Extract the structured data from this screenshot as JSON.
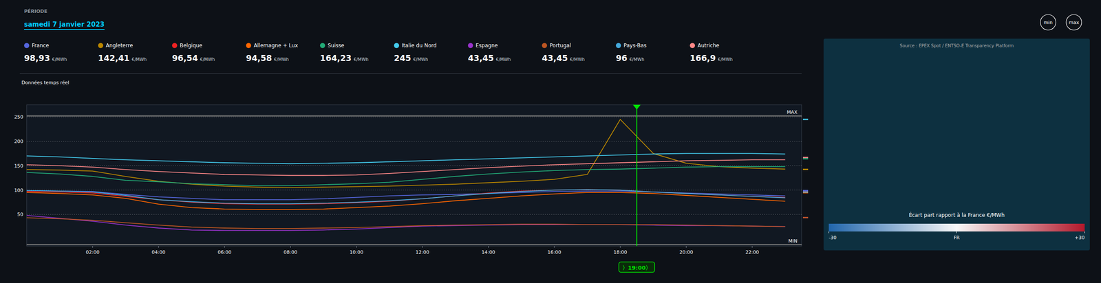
{
  "chart_data": [
    {
      "type": "line",
      "title": "samedi 7 janvier 2023",
      "subtitle": "PÉRIODE",
      "annotations": [
        "Données temps réel"
      ],
      "buttons": [
        "min",
        "max"
      ],
      "legend": "top",
      "grid": true,
      "price_unit": "€/MWh",
      "x": [
        0,
        1,
        2,
        3,
        4,
        5,
        6,
        7,
        8,
        9,
        10,
        11,
        12,
        13,
        14,
        15,
        16,
        17,
        18,
        19,
        20,
        21,
        22,
        23
      ],
      "xlim": [
        0,
        23.5
      ],
      "xticks": [
        {
          "value": 2,
          "label": "02:00"
        },
        {
          "value": 4,
          "label": "04:00"
        },
        {
          "value": 6,
          "label": "06:00"
        },
        {
          "value": 8,
          "label": "08:00"
        },
        {
          "value": 10,
          "label": "10:00"
        },
        {
          "value": 12,
          "label": "12:00"
        },
        {
          "value": 14,
          "label": "14:00"
        },
        {
          "value": 16,
          "label": "16:00"
        },
        {
          "value": 18,
          "label": "18:00"
        },
        {
          "value": 20,
          "label": "20:00"
        },
        {
          "value": 22,
          "label": "22:00"
        }
      ],
      "ylim": [
        -15,
        275
      ],
      "yticks": [
        50,
        100,
        150,
        200,
        250
      ],
      "reference_lines": [
        {
          "value": 252,
          "label": "MAX"
        },
        {
          "value": -12,
          "label": "MIN"
        }
      ],
      "cursor": {
        "value": 18.5,
        "label": "〉19:00〉"
      },
      "series": [
        {
          "name": "France",
          "color": "#5566dd",
          "price": {
            "value": 98.93,
            "label": "98,93"
          },
          "values": [
            99,
            98,
            97,
            91,
            86,
            83,
            80,
            80,
            80,
            82,
            85,
            88,
            90,
            91,
            93,
            95,
            97,
            98,
            98,
            96,
            94,
            92,
            90,
            88
          ]
        },
        {
          "name": "Angleterre",
          "color": "#bb8800",
          "price": {
            "value": 142.41,
            "label": "142,41"
          },
          "values": [
            142,
            141,
            139,
            128,
            118,
            112,
            108,
            106,
            105,
            106,
            107,
            108,
            110,
            112,
            115,
            118,
            122,
            132,
            245,
            175,
            155,
            148,
            145,
            143
          ]
        },
        {
          "name": "Belgique",
          "color": "#ee2222",
          "price": {
            "value": 96.54,
            "label": "96,54"
          },
          "values": [
            97,
            96,
            94,
            87,
            80,
            75,
            72,
            71,
            71,
            72,
            74,
            77,
            82,
            88,
            94,
            98,
            100,
            101,
            100,
            96,
            93,
            90,
            87,
            85
          ]
        },
        {
          "name": "Allemagne + Lux",
          "color": "#ff6600",
          "price": {
            "value": 94.58,
            "label": "94,58"
          },
          "values": [
            95,
            93,
            90,
            83,
            71,
            64,
            61,
            60,
            60,
            61,
            64,
            67,
            72,
            78,
            83,
            88,
            92,
            95,
            95,
            93,
            89,
            85,
            81,
            77
          ]
        },
        {
          "name": "Suisse",
          "color": "#22aa77",
          "price": {
            "value": 164.23,
            "label": "164,23"
          },
          "values": [
            136,
            133,
            128,
            120,
            117,
            113,
            111,
            109,
            109,
            111,
            113,
            116,
            122,
            128,
            133,
            137,
            140,
            142,
            143,
            145,
            147,
            148,
            148,
            148
          ]
        },
        {
          "name": "Italie du Nord",
          "color": "#44ccee",
          "price": {
            "value": 245,
            "label": "245"
          },
          "values": [
            170,
            168,
            165,
            162,
            160,
            158,
            156,
            155,
            154,
            155,
            156,
            158,
            160,
            162,
            164,
            166,
            168,
            170,
            172,
            174,
            175,
            175,
            175,
            174
          ]
        },
        {
          "name": "Espagne",
          "color": "#9933cc",
          "price": {
            "value": 43.45,
            "label": "43,45"
          },
          "values": [
            48,
            42,
            36,
            28,
            22,
            18,
            17,
            17,
            17,
            18,
            20,
            23,
            26,
            27,
            28,
            29,
            29,
            29,
            29,
            28,
            27,
            27,
            26,
            25
          ]
        },
        {
          "name": "Portugal",
          "color": "#bb5522",
          "price": {
            "value": 43.45,
            "label": "43,45"
          },
          "values": [
            43,
            41,
            38,
            33,
            28,
            24,
            22,
            21,
            21,
            22,
            23,
            25,
            27,
            28,
            29,
            30,
            30,
            29,
            29,
            29,
            28,
            27,
            26,
            25
          ]
        },
        {
          "name": "Pays-Bas",
          "color": "#44aadd",
          "price": {
            "value": 96,
            "label": "96"
          },
          "values": [
            99,
            98,
            96,
            89,
            80,
            76,
            73,
            72,
            72,
            73,
            75,
            78,
            82,
            88,
            93,
            97,
            100,
            101,
            100,
            96,
            93,
            90,
            87,
            84
          ]
        },
        {
          "name": "Autriche",
          "color": "#ff8888",
          "price": {
            "value": 166.9,
            "label": "166,9"
          },
          "values": [
            152,
            150,
            147,
            142,
            138,
            135,
            132,
            131,
            130,
            130,
            131,
            134,
            138,
            142,
            146,
            149,
            152,
            154,
            156,
            158,
            160,
            161,
            162,
            162
          ]
        }
      ]
    },
    {
      "type": "colorbar",
      "title": "Écart part rapport à la France €/MWh",
      "subtitle": "Source : EPEX Spot / ENTSO-E Transparency Platform",
      "xlim": [
        -30,
        30
      ],
      "xticks": [
        -30,
        {
          "value": 0,
          "label": "FR"
        },
        {
          "value": 30,
          "label": "+30"
        }
      ],
      "colors": [
        "#2166ac",
        "#f7f7f7",
        "#b2182b"
      ]
    }
  ]
}
